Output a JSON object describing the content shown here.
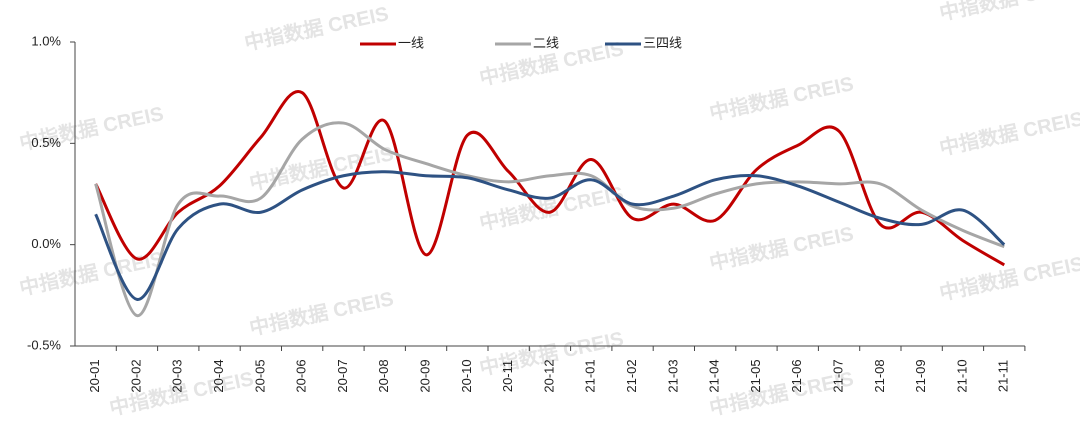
{
  "chart_data": {
    "type": "line",
    "watermark": "中指数据 CREIS",
    "categories": [
      "20-01",
      "20-02",
      "20-03",
      "20-04",
      "20-05",
      "20-06",
      "20-07",
      "20-08",
      "20-09",
      "20-10",
      "20-11",
      "20-12",
      "21-01",
      "21-02",
      "21-03",
      "21-04",
      "21-05",
      "21-06",
      "21-07",
      "21-08",
      "21-09",
      "21-10",
      "21-11"
    ],
    "series": [
      {
        "name": "一线",
        "color": "#c00000",
        "values": [
          0.3,
          -0.07,
          0.16,
          0.29,
          0.53,
          0.75,
          0.28,
          0.61,
          -0.05,
          0.54,
          0.36,
          0.16,
          0.42,
          0.13,
          0.2,
          0.12,
          0.37,
          0.49,
          0.56,
          0.1,
          0.16,
          0.02,
          -0.1
        ]
      },
      {
        "name": "二线",
        "color": "#a6a6a6",
        "values": [
          0.3,
          -0.35,
          0.2,
          0.24,
          0.23,
          0.52,
          0.6,
          0.47,
          0.4,
          0.34,
          0.31,
          0.34,
          0.34,
          0.19,
          0.18,
          0.25,
          0.3,
          0.31,
          0.3,
          0.3,
          0.17,
          0.07,
          -0.01
        ]
      },
      {
        "name": "三四线",
        "color": "#2e5283",
        "values": [
          0.15,
          -0.27,
          0.08,
          0.2,
          0.16,
          0.27,
          0.34,
          0.36,
          0.34,
          0.33,
          0.27,
          0.23,
          0.32,
          0.2,
          0.24,
          0.32,
          0.34,
          0.29,
          0.21,
          0.13,
          0.1,
          0.17,
          0.0
        ]
      }
    ],
    "ylim": [
      -0.5,
      1.0
    ],
    "yticks": [
      {
        "value": 1.0,
        "label": "1.0%"
      },
      {
        "value": 0.5,
        "label": "0.5%"
      },
      {
        "value": 0,
        "label": "0.0%"
      },
      {
        "value": -0.5,
        "label": "-0.5%"
      }
    ],
    "grid": false,
    "legend": "top"
  }
}
